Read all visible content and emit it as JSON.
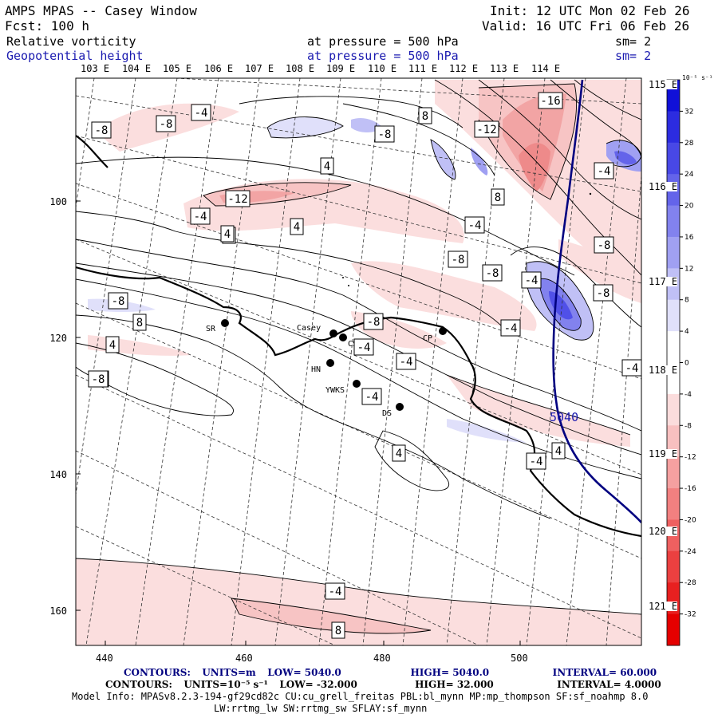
{
  "header": {
    "title": "AMPS MPAS -- Casey Window",
    "fcst": "Fcst:  100 h",
    "init": "Init: 12 UTC Mon 02 Feb 26",
    "valid": "Valid: 16 UTC Fri 06 Feb 26",
    "field1_name": "Relative vorticity",
    "field1_level": "at pressure =  500 hPa",
    "field1_sm": "sm= 2",
    "field2_name": "Geopotential height",
    "field2_level": "at pressure =  500 hPa",
    "field2_sm": "sm= 2"
  },
  "top_lon_labels": [
    "103 E",
    "104 E",
    "105 E",
    "106 E",
    "107 E",
    "108 E",
    "109 E",
    "110 E",
    "111 E",
    "112 E",
    "113 E",
    "114 E"
  ],
  "right_lon_labels": [
    "115 E",
    "116 E",
    "117 E",
    "118 E",
    "119 E",
    "120 E",
    "121 E"
  ],
  "y_axis": [
    "100",
    "120",
    "140",
    "160"
  ],
  "x_axis": [
    "440",
    "460",
    "480",
    "500"
  ],
  "colorbar": {
    "unit": "10⁻⁵ s⁻¹",
    "ticks": [
      "32",
      "28",
      "24",
      "20",
      "16",
      "12",
      "8",
      "4",
      "0",
      "-4",
      "-8",
      "-12",
      "-16",
      "-20",
      "-24",
      "-28",
      "-32"
    ],
    "colors": [
      "#1010d8",
      "#2c2ce0",
      "#4848e6",
      "#6464ea",
      "#8282ee",
      "#a0a0f2",
      "#c0c0f6",
      "#e0e0fa",
      "#ffffff",
      "#ffffff",
      "#fbdcdc",
      "#f8c0c0",
      "#f5a0a0",
      "#f28080",
      "#ee6060",
      "#eb4040",
      "#e82020",
      "#e50000"
    ]
  },
  "stations": [
    {
      "name": "SR"
    },
    {
      "name": "Casey"
    },
    {
      "name": "CS"
    },
    {
      "name": "HN"
    },
    {
      "name": "YWKS"
    },
    {
      "name": "DS"
    },
    {
      "name": "CP"
    }
  ],
  "contour_labels": [
    "-8",
    "-8",
    "-4",
    "-8",
    "8",
    "4",
    "-12",
    "-16",
    "4",
    "-4",
    "-12",
    "8",
    "-4",
    "-4",
    "4",
    "-8",
    "-8",
    "-4",
    "-8",
    "-8",
    "-4",
    "-8",
    "-4",
    "-8",
    "8",
    "4",
    "-4",
    "-4",
    "-4",
    "4",
    "-4",
    "4",
    "-4",
    "8",
    "4",
    "-4",
    "-8"
  ],
  "height_label": "5040",
  "footer": {
    "c1_label": "CONTOURS:",
    "c1_units": "UNITS=m",
    "c1_low": "LOW=  5040.0",
    "c1_high": "HIGH=  5040.0",
    "c1_interval": "INTERVAL=  60.000",
    "c2_label": "CONTOURS:",
    "c2_units": "UNITS=10⁻⁵ s⁻¹",
    "c2_low": "LOW= -32.000",
    "c2_high": "HIGH=  32.000",
    "c2_interval": "INTERVAL=   4.0000",
    "model_info": "Model Info: MPASv8.2.3-194-gf29cd82c CU:cu_grell_freitas PBL:bl_mynn MP:mp_thompson SF:sf_noahmp 8.0",
    "model_info2": "LW:rrtmg_lw SW:rrtmg_sw SFLAY:sf_mynn"
  }
}
